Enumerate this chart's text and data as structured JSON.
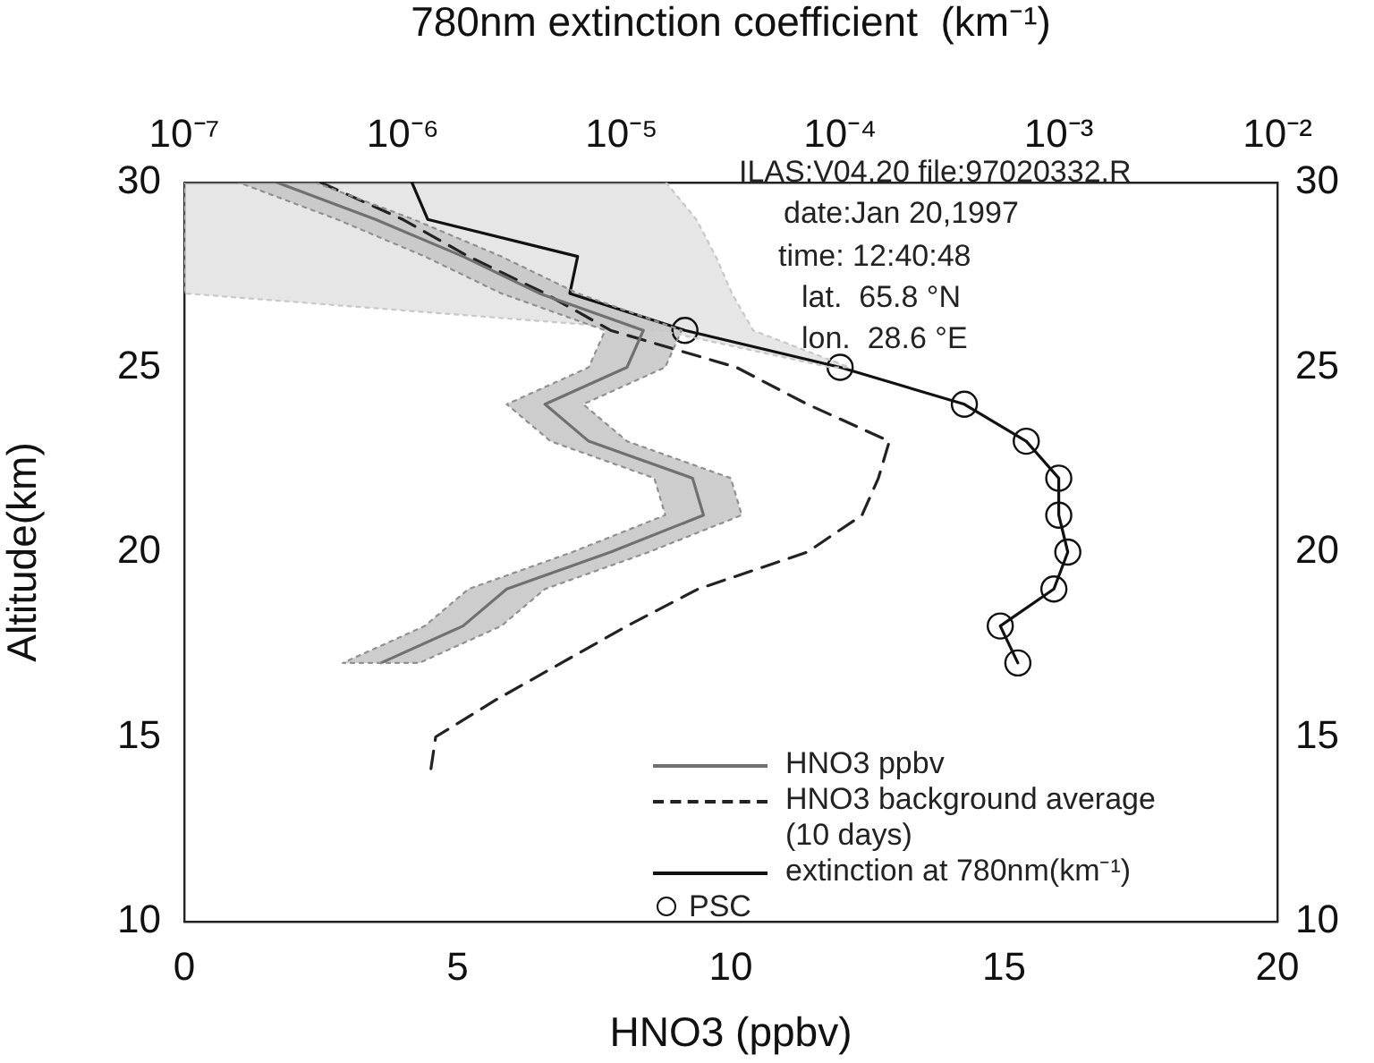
{
  "chart_data": {
    "type": "line",
    "x2label": "780nm extinction coefficient  (km⁻¹)",
    "xlabel": "HNO3 (ppbv)",
    "ylabel": "Altitude(km)",
    "xlim": [
      0,
      20
    ],
    "xticks": [
      0,
      5,
      10,
      15,
      20
    ],
    "x2lim": [
      1e-07,
      0.01
    ],
    "x2ticks": [
      {
        "value": 1e-07,
        "label": "10⁻⁷"
      },
      {
        "value": 1e-06,
        "label": "10⁻⁶"
      },
      {
        "value": 1e-05,
        "label": "10⁻⁵"
      },
      {
        "value": 0.0001,
        "label": "10⁻⁴"
      },
      {
        "value": 0.001,
        "label": "10⁻³"
      },
      {
        "value": 0.01,
        "label": "10⁻²"
      }
    ],
    "ylim": [
      10,
      30
    ],
    "yticks": [
      10,
      15,
      20,
      25,
      30
    ],
    "y2lim": [
      10,
      30
    ],
    "y2ticks": [
      10,
      15,
      20,
      25,
      30
    ],
    "log": "x2",
    "grid": false,
    "legend": "bottom",
    "series": [
      {
        "type": "area",
        "color": "#909090",
        "marker": "none",
        "line_style": "dotted",
        "x": [
          2.4,
          4.2,
          5.8,
          7.2,
          9.1,
          8.8,
          7.3,
          8.1,
          10.0,
          10.2,
          8.5,
          6.6,
          5.8,
          4.3,
          2.9,
          4.4,
          5.2,
          7.1,
          8.8,
          8.6,
          6.7,
          5.9,
          7.4,
          7.7,
          5.8,
          4.4,
          2.8,
          1.0
        ],
        "values": [
          30,
          29,
          28,
          27,
          26,
          25,
          24,
          23,
          22,
          21,
          20,
          19,
          18,
          17,
          17,
          18,
          19,
          20,
          21,
          22,
          23,
          24,
          25,
          26,
          27,
          28,
          29,
          30
        ]
      },
      {
        "name": "HNO3 ppbv",
        "type": "line",
        "color": "#707070",
        "marker": "none",
        "line_style": "solid",
        "x": [
          1.7,
          3.5,
          5.1,
          6.5,
          8.4,
          8.1,
          6.6,
          7.4,
          9.3,
          9.5,
          7.8,
          5.9,
          5.1,
          3.6
        ],
        "values": [
          30,
          29,
          28,
          27,
          26,
          25,
          24,
          23,
          22,
          21,
          20,
          19,
          18,
          17
        ]
      },
      {
        "name": "HNO3 background average\n(10 days)",
        "type": "line",
        "color": "#222222",
        "marker": "none",
        "line_style": "dashed",
        "x": [
          2.5,
          4.0,
          5.2,
          6.6,
          7.8,
          10.1,
          11.4,
          12.9,
          12.7,
          12.4,
          11.4,
          9.4,
          8.1,
          6.9,
          5.7,
          4.6,
          4.5
        ],
        "values": [
          30,
          29,
          28,
          27,
          26,
          25,
          24,
          23,
          22,
          21,
          20,
          19,
          18,
          17,
          16,
          15,
          14
        ]
      },
      {
        "type": "area",
        "axis": "x2",
        "color": "#c8c8c8",
        "marker": "none",
        "line_style": "dotted",
        "x": [
          1.6e-05,
          2.2e-05,
          2.7e-05,
          3.2e-05,
          4e-05,
          0.00011,
          9e-05,
          1.5e-05,
          1e-07,
          1e-07
        ],
        "values": [
          30,
          29,
          28,
          27,
          26,
          25,
          25,
          26,
          27,
          30
        ]
      },
      {
        "name": "extinction at 780nm(km⁻¹)",
        "type": "line",
        "axis": "x2",
        "color": "#111111",
        "marker": "none",
        "line_style": "solid",
        "x": [
          1.1e-06,
          1.3e-06,
          6.3e-06,
          5.8e-06,
          1.95e-05,
          0.0001,
          0.00037,
          0.00071,
          0.001,
          0.001,
          0.0011,
          0.00095,
          0.00054,
          0.00065
        ],
        "values": [
          30,
          29,
          28,
          27,
          26,
          25,
          24,
          23,
          22,
          21,
          20,
          19,
          18,
          17
        ]
      },
      {
        "name": "PSC",
        "type": "scatter",
        "axis": "x2",
        "color": "#111111",
        "marker": "circle",
        "x": [
          1.95e-05,
          0.0001,
          0.00037,
          0.00071,
          0.001,
          0.001,
          0.0011,
          0.00095,
          0.00054,
          0.00065
        ],
        "values": [
          26,
          25,
          24,
          23,
          22,
          21,
          20,
          19,
          18,
          17
        ]
      }
    ],
    "annotations": [
      "ILAS:V04.20 file:97020332.R",
      "date:Jan 20,1997",
      "time: 12:40:48",
      "lat.  65.8 °N",
      "lon.  28.6 °E"
    ]
  }
}
